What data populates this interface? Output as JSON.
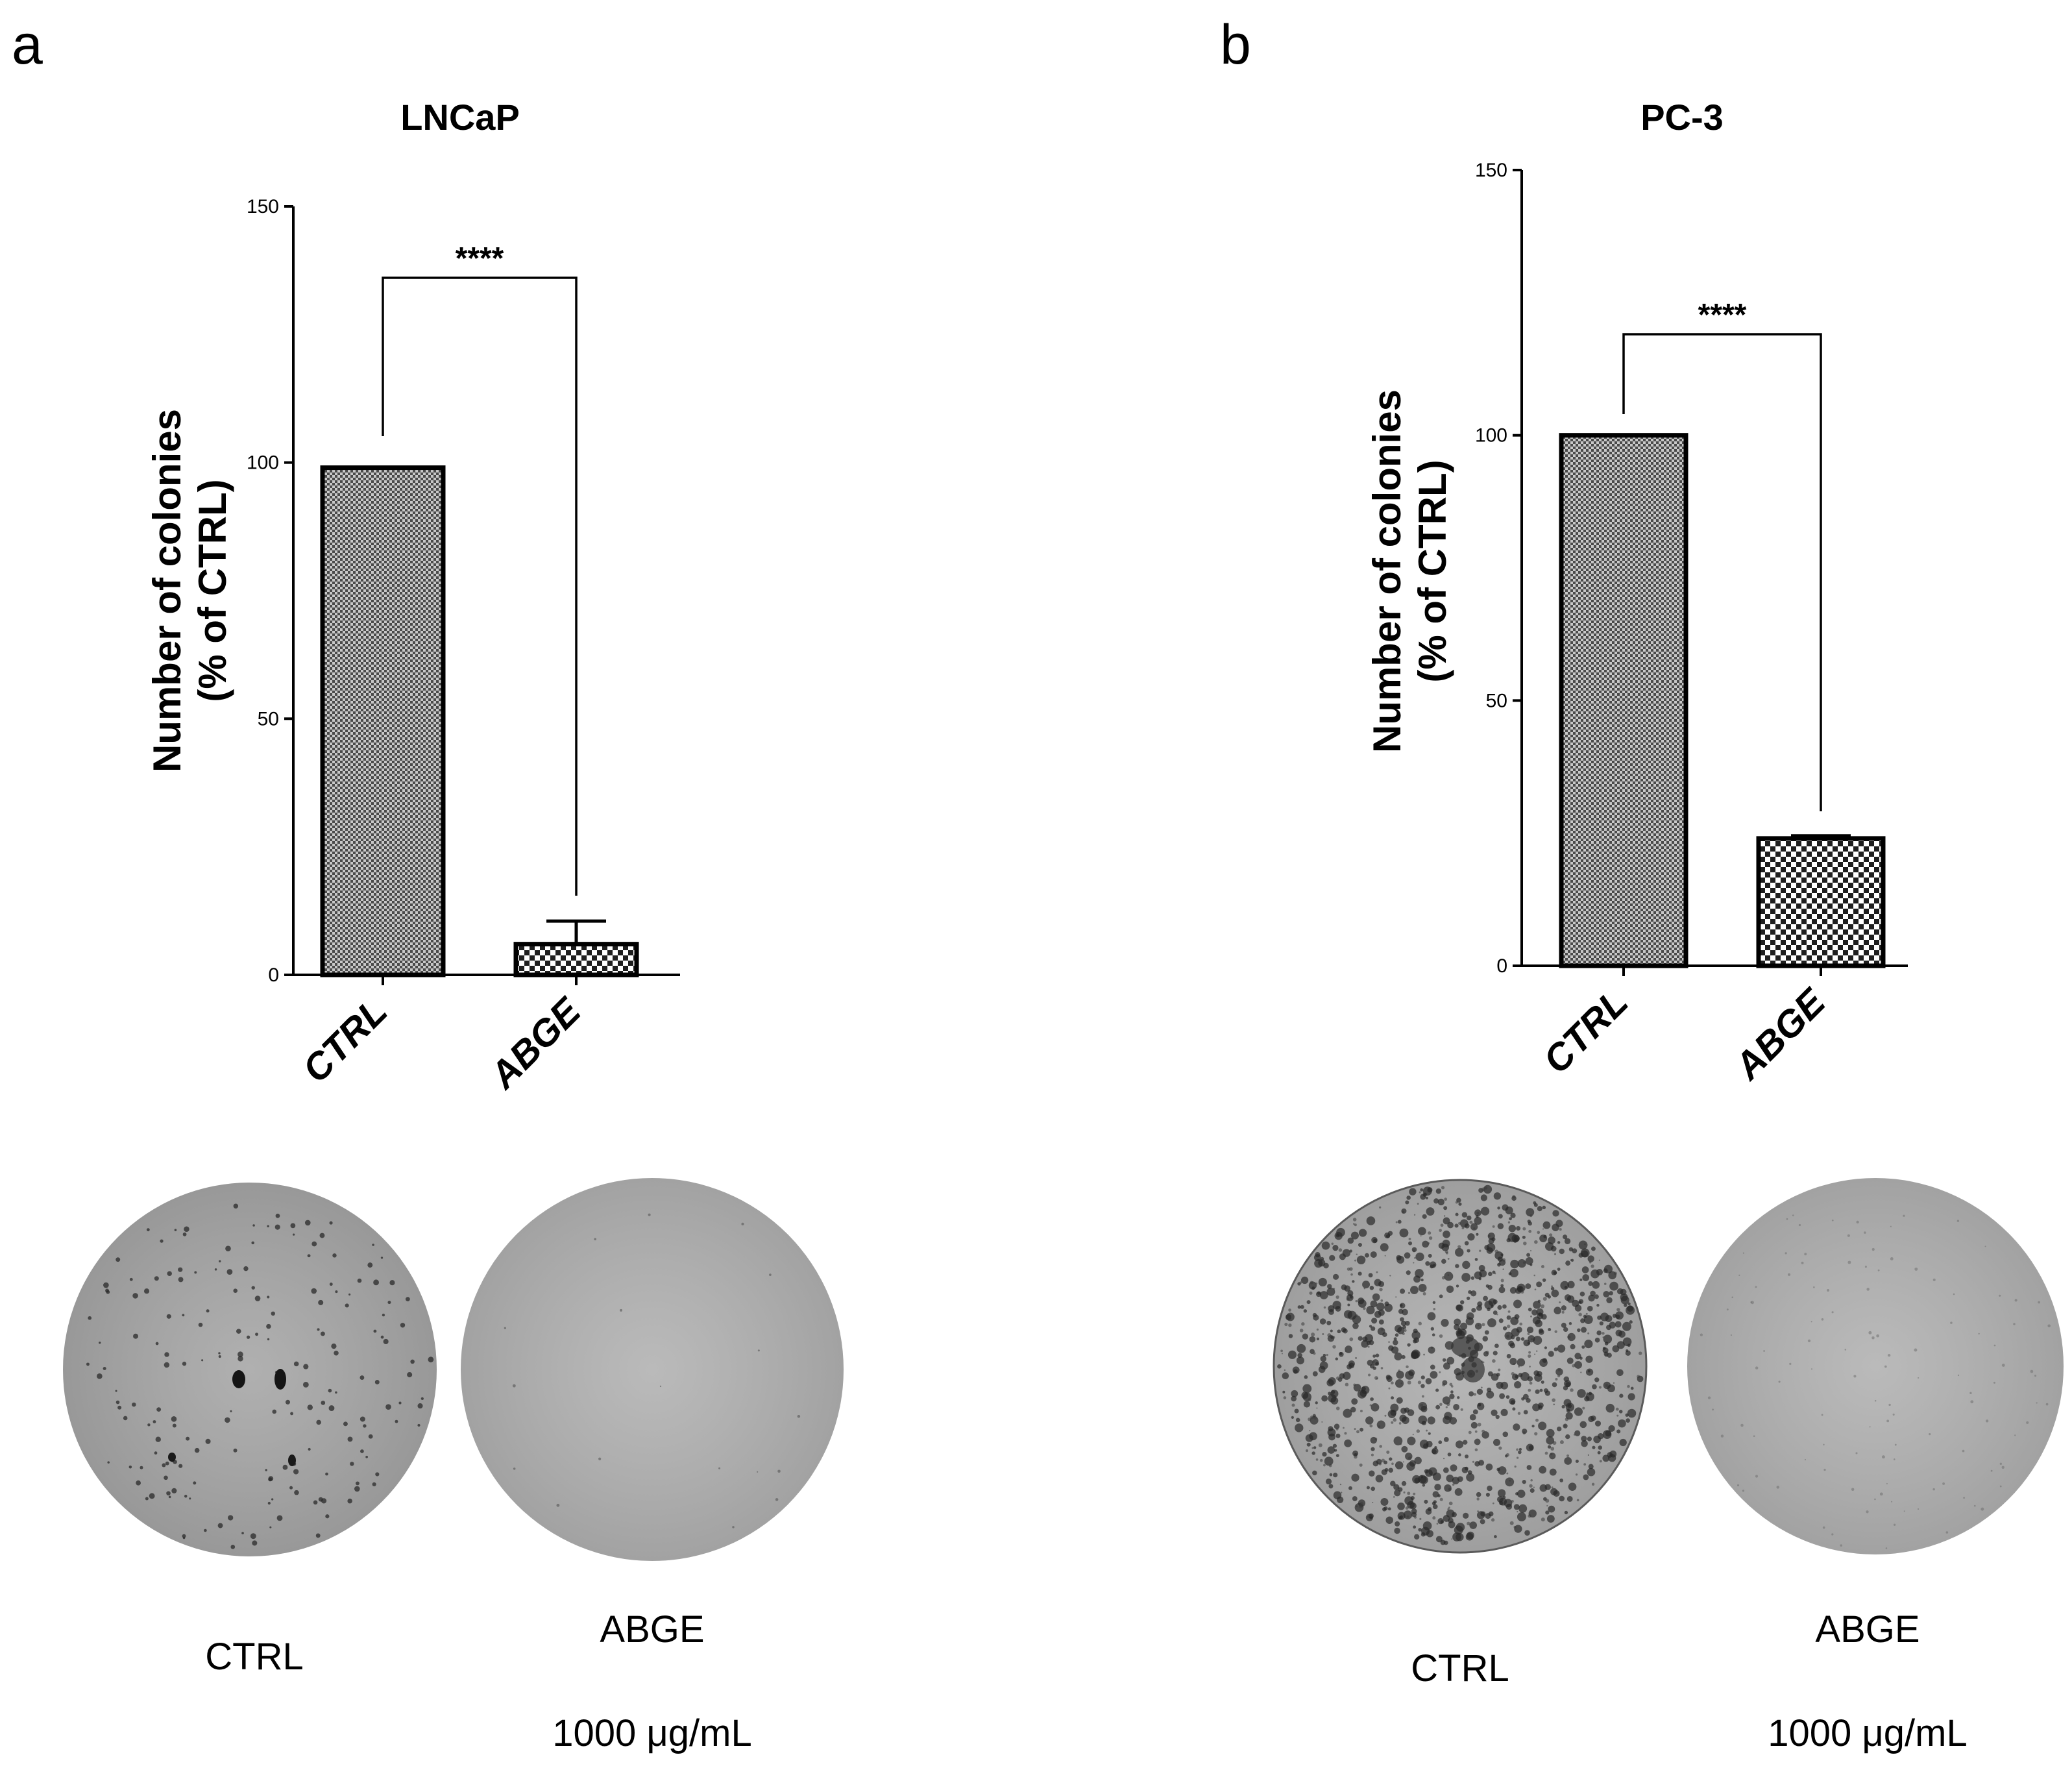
{
  "panels": [
    {
      "letter": "a",
      "chart": {
        "type": "bar",
        "title": "LNCaP",
        "ylabel_line1": "Number of colonies",
        "ylabel_line2": "(% of CTRL)",
        "ylim": [
          0,
          150
        ],
        "yticks": [
          "0",
          "50",
          "100",
          "150"
        ],
        "categories": [
          "CTRL",
          "ABGE"
        ],
        "values": [
          99,
          6
        ],
        "error_upper": [
          0,
          4.5
        ],
        "significance": "****",
        "pattern": [
          "fine",
          "coarse"
        ]
      },
      "photos": [
        {
          "label": "CTRL",
          "sublabel": ""
        },
        {
          "label": "ABGE",
          "sublabel": "1000 μg/mL"
        }
      ]
    },
    {
      "letter": "b",
      "chart": {
        "type": "bar",
        "title": "PC-3",
        "ylabel_line1": "Number of colonies",
        "ylabel_line2": "(% of CTRL)",
        "ylim": [
          0,
          150
        ],
        "yticks": [
          "0",
          "50",
          "100",
          "150"
        ],
        "categories": [
          "CTRL",
          "ABGE"
        ],
        "values": [
          100,
          24
        ],
        "error_upper": [
          0,
          0.5
        ],
        "significance": "****",
        "pattern": [
          "fine",
          "coarse"
        ]
      },
      "photos": [
        {
          "label": "CTRL",
          "sublabel": ""
        },
        {
          "label": "ABGE",
          "sublabel": "1000 μg/mL"
        }
      ]
    }
  ],
  "colors": {
    "bar_fill": "#8a8a8a",
    "dish_ctrl_lncap": "#a9a9a9",
    "dish_abge": "#b4b4b4",
    "dish_ctrl_pc3": "#b0b0b0",
    "colony": "#2a2a2a"
  }
}
